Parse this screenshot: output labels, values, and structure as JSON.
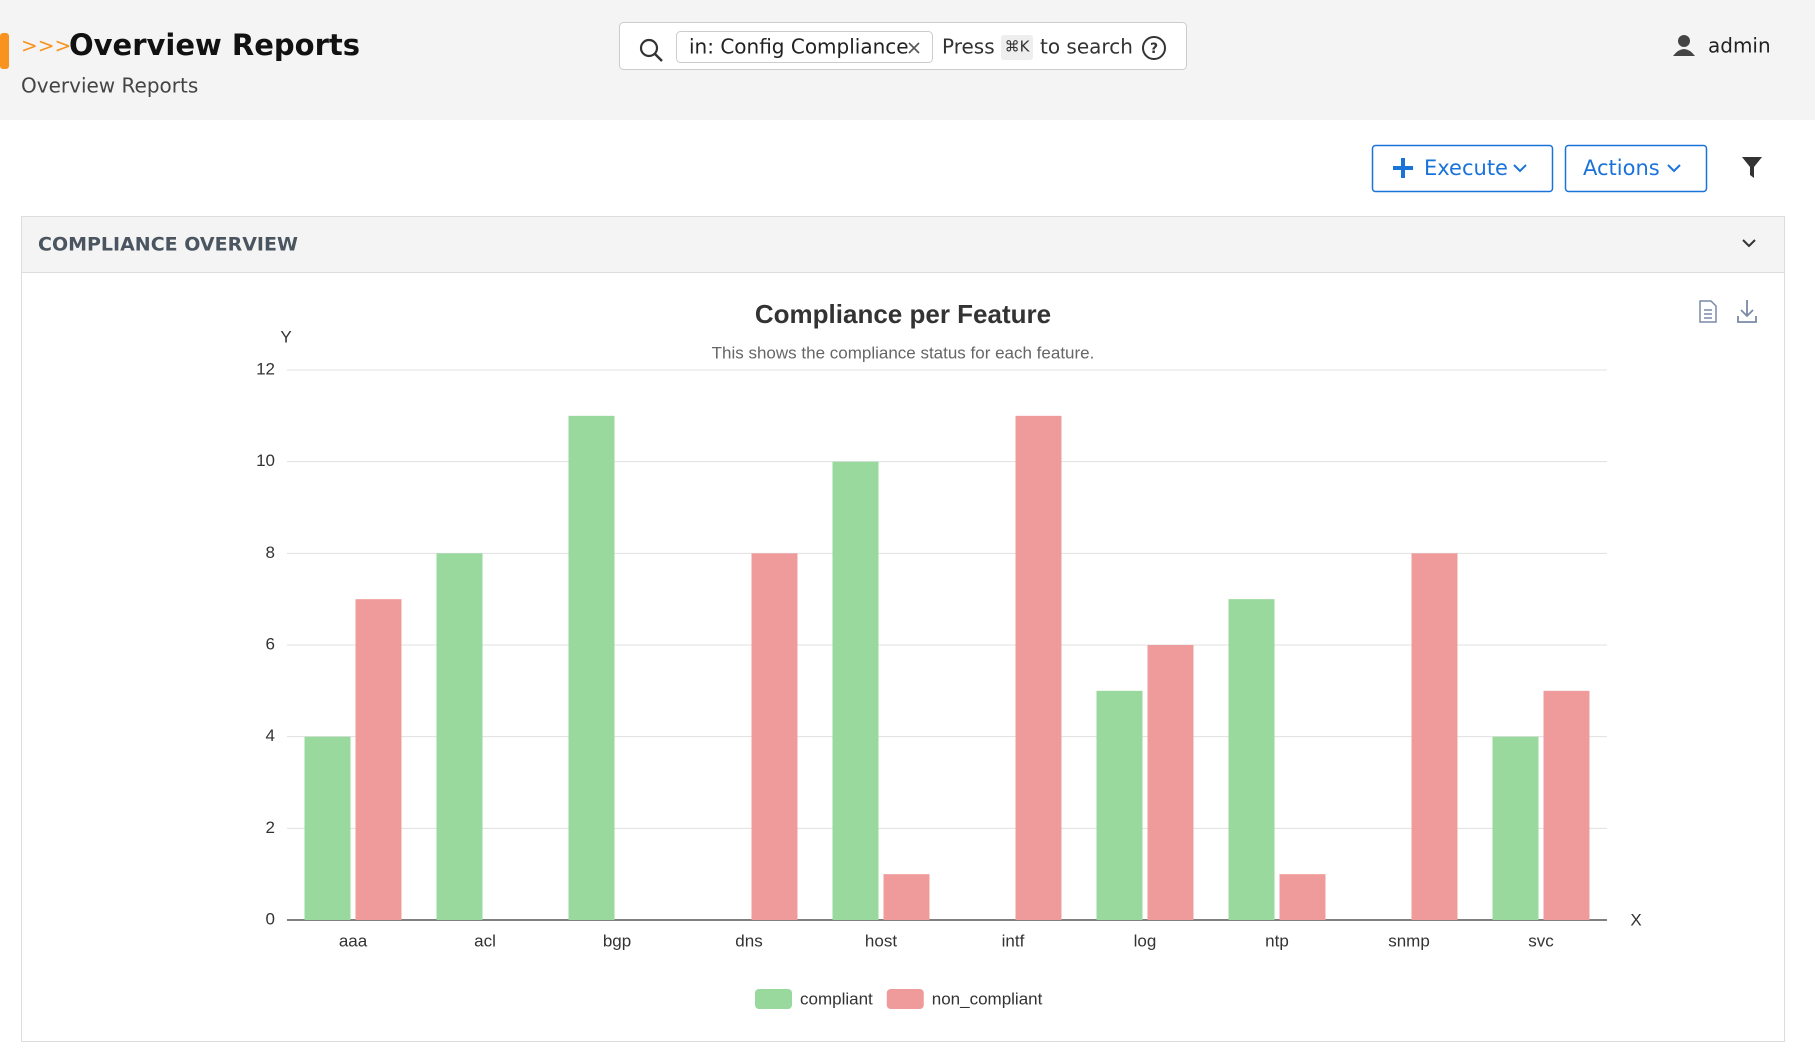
{
  "header": {
    "prefix": ">>>",
    "title": "Overview Reports",
    "breadcrumb": "Overview Reports",
    "search": {
      "chip": "in: Config Compliance",
      "press": "Press",
      "shortcut": "⌘K",
      "hint": "to search"
    },
    "user": "admin"
  },
  "toolbar": {
    "execute": "Execute",
    "actions": "Actions"
  },
  "panel": {
    "title": "COMPLIANCE OVERVIEW"
  },
  "chart_data": {
    "type": "bar",
    "title": "Compliance per Feature",
    "subtitle": "This shows the compliance status for each feature.",
    "x_label": "X",
    "y_label": "Y",
    "categories": [
      "aaa",
      "acl",
      "bgp",
      "dns",
      "host",
      "intf",
      "log",
      "ntp",
      "snmp",
      "svc"
    ],
    "series": [
      {
        "name": "compliant",
        "color": "#9ad99d",
        "values": [
          4,
          8,
          11,
          0,
          10,
          0,
          5,
          7,
          0,
          4
        ]
      },
      {
        "name": "non_compliant",
        "color": "#f09b9b",
        "values": [
          7,
          0,
          0,
          8,
          1,
          11,
          6,
          1,
          8,
          5
        ]
      }
    ],
    "ylim": [
      0,
      12
    ],
    "yticks": [
      0,
      2,
      4,
      6,
      8,
      10,
      12
    ],
    "grid": true
  }
}
